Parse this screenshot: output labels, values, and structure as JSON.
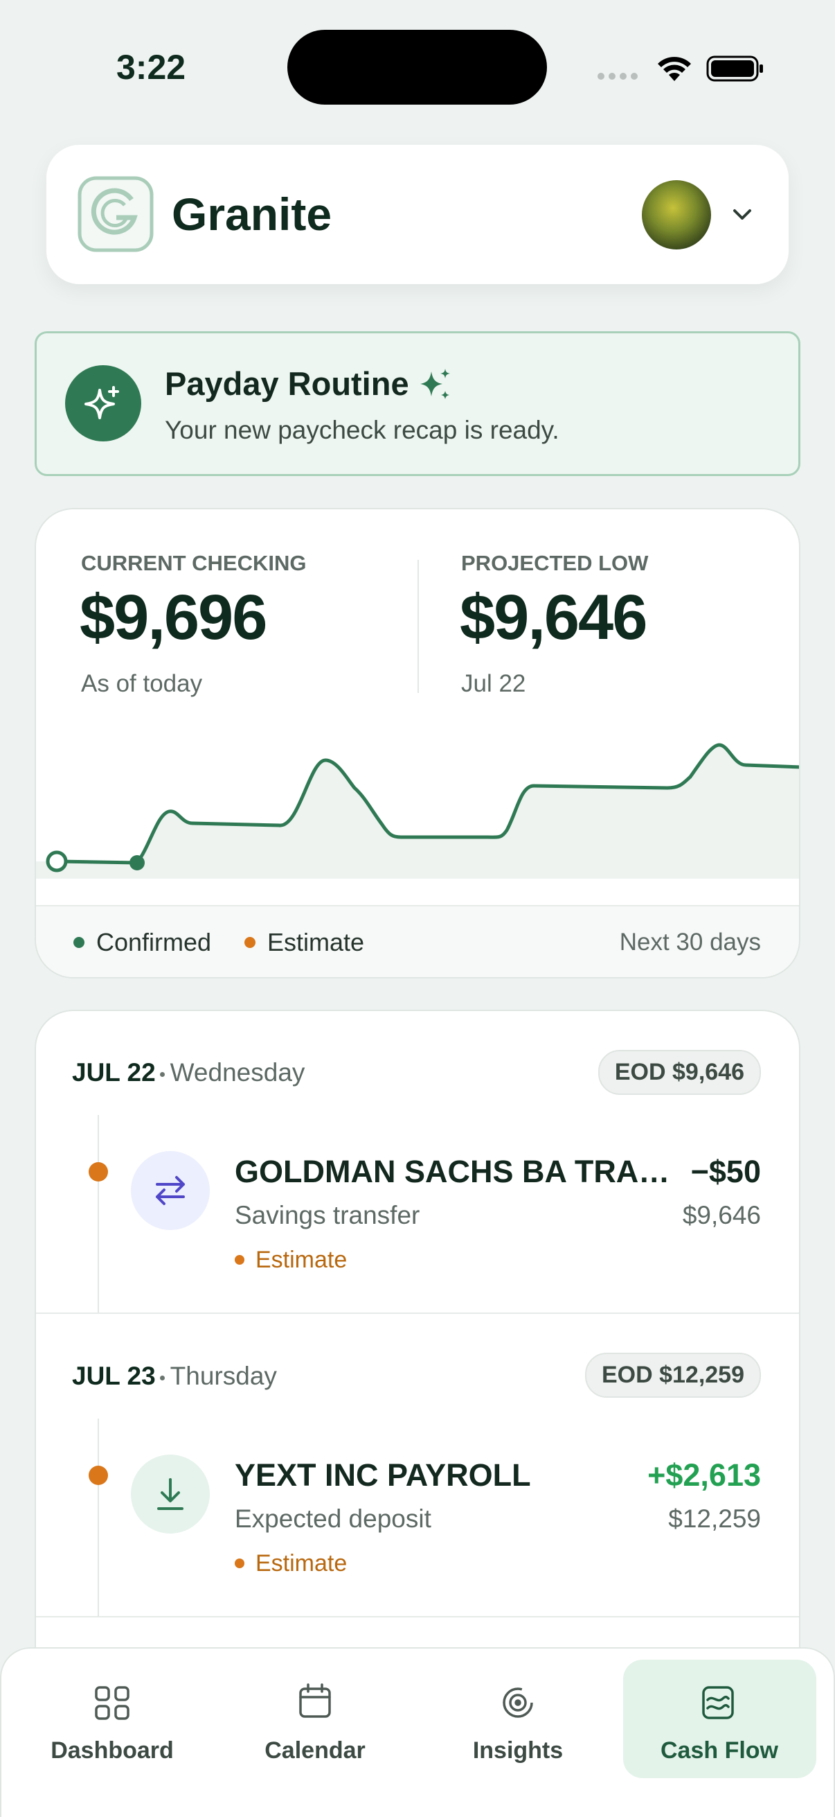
{
  "status": {
    "time": "3:22"
  },
  "header": {
    "brand": "Granite"
  },
  "banner": {
    "title": "Payday Routine",
    "subtitle": "Your new paycheck recap is ready."
  },
  "balances": [
    {
      "label": "CURRENT CHECKING",
      "amount": "$9,696",
      "note": "As of today"
    },
    {
      "label": "PROJECTED LOW",
      "amount": "$9,646",
      "note": "Jul 22"
    }
  ],
  "legend": {
    "items": [
      "Confirmed",
      "Estimate"
    ],
    "range": "Next 30 days"
  },
  "days": [
    {
      "date": "JUL 22",
      "weekday": "Wednesday",
      "eod": "EOD $9,646",
      "transaction": {
        "name": "GOLDMAN SACHS BA TRA…",
        "subtitle": "Savings transfer",
        "amount": "−$50",
        "balance": "$9,646",
        "status": "Estimate"
      }
    },
    {
      "date": "JUL 23",
      "weekday": "Thursday",
      "eod": "EOD $12,259",
      "transaction": {
        "name": "YEXT INC PAYROLL",
        "subtitle": "Expected deposit",
        "amount": "+$2,613",
        "balance": "$12,259",
        "status": "Estimate"
      }
    }
  ],
  "nav": {
    "tabs": [
      "Dashboard",
      "Calendar",
      "Insights",
      "Cash Flow"
    ]
  }
}
